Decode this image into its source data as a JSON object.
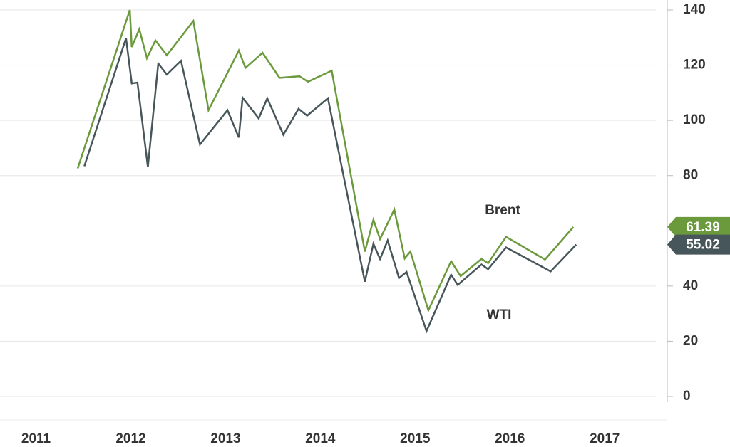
{
  "chart_data": {
    "type": "line",
    "series": [
      {
        "name": "Brent",
        "color": "#6b9a3c",
        "x": [
          2011.44,
          2011.99,
          2012.01,
          2012.09,
          2012.17,
          2012.26,
          2012.38,
          2012.66,
          2012.82,
          2013.14,
          2013.21,
          2013.39,
          2013.57,
          2013.78,
          2013.87,
          2014.12,
          2014.47,
          2014.56,
          2014.63,
          2014.78,
          2014.89,
          2014.95,
          2015.14,
          2015.38,
          2015.48,
          2015.7,
          2015.77,
          2015.96,
          2016.37,
          2016.67
        ],
        "values": [
          82.6,
          140,
          126.6,
          133,
          122.6,
          129,
          123.6,
          136,
          103.7,
          125.3,
          119,
          124.5,
          115.4,
          116,
          114,
          118,
          52.5,
          64,
          57,
          67.7,
          50,
          52.5,
          31.2,
          49,
          43.6,
          49.8,
          48.3,
          57.8,
          49.6,
          61.39
        ]
      },
      {
        "name": "WTI",
        "color": "#47565a",
        "x": [
          2011.51,
          2011.95,
          2012.01,
          2012.07,
          2012.18,
          2012.29,
          2012.38,
          2012.53,
          2012.73,
          2013.02,
          2013.14,
          2013.18,
          2013.35,
          2013.44,
          2013.61,
          2013.77,
          2013.86,
          2014.08,
          2014.47,
          2014.56,
          2014.63,
          2014.71,
          2014.83,
          2014.91,
          2015.12,
          2015.38,
          2015.45,
          2015.7,
          2015.77,
          2015.96,
          2016.43,
          2016.7
        ],
        "values": [
          83.4,
          129.8,
          113.4,
          113.7,
          83.1,
          120.6,
          116.6,
          121.6,
          91.3,
          103.7,
          93.8,
          108.2,
          100.7,
          108,
          94.8,
          104.2,
          101.7,
          108,
          41.6,
          55.3,
          49.8,
          56.5,
          42.9,
          45.1,
          23.7,
          44.1,
          40.4,
          47.8,
          46.1,
          54,
          45.3,
          55.02
        ]
      }
    ],
    "xlim": [
      2010.62,
      2017.54
    ],
    "xticks": [
      2011,
      2012,
      2013,
      2014,
      2015,
      2016,
      2017
    ],
    "ylim": [
      0,
      140
    ],
    "yticks": [
      0,
      20,
      40,
      80,
      100,
      120,
      140
    ],
    "grid": true
  }
}
